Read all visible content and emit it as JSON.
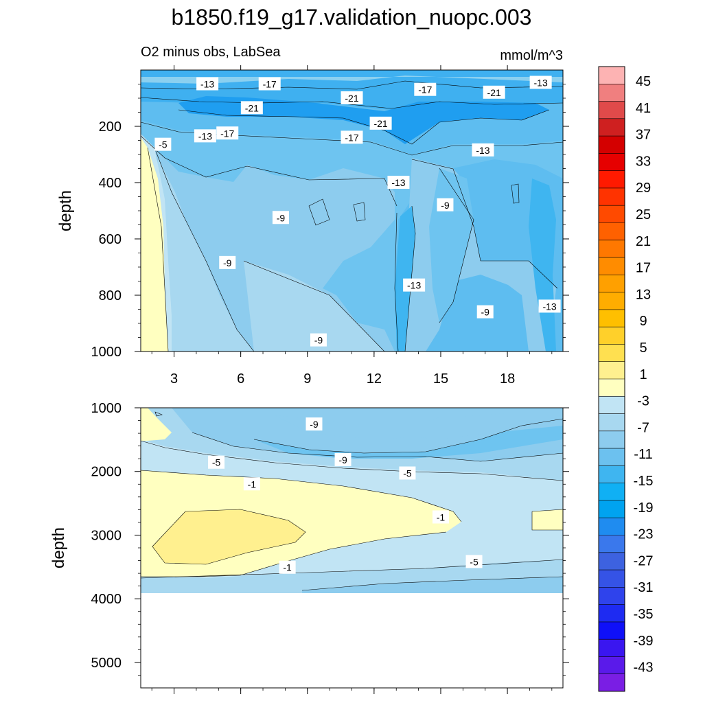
{
  "title": "b1850.f19_g17.validation_nuopc.003",
  "subtitle_left": "O2 minus obs, LabSea",
  "subtitle_right": "mmol/m^3",
  "colors": {
    "background": "#ffffff",
    "panel_empty": "#ffffff",
    "contour_line": "#000000"
  },
  "chart_data": [
    {
      "type": "heatmap",
      "panel": "upper",
      "ylabel": "depth",
      "xlabel": "",
      "ylim": [
        1000,
        0
      ],
      "xlim": [
        1.5,
        20.5
      ],
      "x_ticks": [
        3,
        6,
        9,
        12,
        15,
        18
      ],
      "x_tick_labels": [
        "3",
        "6",
        "9",
        "12",
        "15",
        "18"
      ],
      "y_ticks": [
        200,
        400,
        600,
        800,
        1000
      ],
      "y_tick_labels": [
        "200",
        "400",
        "600",
        "800",
        "1000"
      ],
      "contour_labels": [
        {
          "text": "-13",
          "x": 4.5,
          "y": 50
        },
        {
          "text": "-17",
          "x": 7.3,
          "y": 50
        },
        {
          "text": "-21",
          "x": 11.0,
          "y": 100
        },
        {
          "text": "-17",
          "x": 14.3,
          "y": 70
        },
        {
          "text": "-21",
          "x": 17.4,
          "y": 80
        },
        {
          "text": "-13",
          "x": 19.5,
          "y": 45
        },
        {
          "text": "-21",
          "x": 6.5,
          "y": 135
        },
        {
          "text": "-21",
          "x": 12.3,
          "y": 190
        },
        {
          "text": "-13",
          "x": 4.4,
          "y": 235
        },
        {
          "text": "-17",
          "x": 5.4,
          "y": 225
        },
        {
          "text": "-17",
          "x": 11.0,
          "y": 240
        },
        {
          "text": "-5",
          "x": 2.5,
          "y": 265
        },
        {
          "text": "-13",
          "x": 16.9,
          "y": 285
        },
        {
          "text": "-13",
          "x": 13.1,
          "y": 400
        },
        {
          "text": "-9",
          "x": 15.2,
          "y": 480
        },
        {
          "text": "-9",
          "x": 7.8,
          "y": 525
        },
        {
          "text": "-9",
          "x": 5.4,
          "y": 685
        },
        {
          "text": "-13",
          "x": 13.8,
          "y": 765
        },
        {
          "text": "-9",
          "x": 17.0,
          "y": 860
        },
        {
          "text": "-13",
          "x": 19.9,
          "y": 840
        },
        {
          "text": "-9",
          "x": 9.5,
          "y": 960
        }
      ]
    },
    {
      "type": "heatmap",
      "panel": "lower",
      "ylabel": "depth",
      "xlabel": "",
      "ylim": [
        5400,
        1000
      ],
      "xlim": [
        1.5,
        20.5
      ],
      "data_bottom_depth": 3900,
      "y_ticks": [
        1000,
        2000,
        3000,
        4000,
        5000
      ],
      "y_tick_labels": [
        "1000",
        "2000",
        "3000",
        "4000",
        "5000"
      ],
      "contour_labels": [
        {
          "text": "-9",
          "x": 9.3,
          "y": 1260
        },
        {
          "text": "-9",
          "x": 10.6,
          "y": 1820
        },
        {
          "text": "-5",
          "x": 4.9,
          "y": 1860
        },
        {
          "text": "-5",
          "x": 13.5,
          "y": 2030
        },
        {
          "text": "-1",
          "x": 6.5,
          "y": 2200
        },
        {
          "text": "-1",
          "x": 15.0,
          "y": 2720
        },
        {
          "text": "-1",
          "x": 8.1,
          "y": 3510
        },
        {
          "text": "-5",
          "x": 16.5,
          "y": 3420
        }
      ]
    }
  ],
  "colorbar": {
    "labels": [
      "45",
      "41",
      "37",
      "33",
      "29",
      "25",
      "21",
      "17",
      "13",
      "9",
      "5",
      "1",
      "-3",
      "-7",
      "-11",
      "-15",
      "-19",
      "-23",
      "-27",
      "-31",
      "-35",
      "-39",
      "-43"
    ],
    "colors": [
      "#fdb3b3",
      "#f07f7f",
      "#e04a4a",
      "#cf2020",
      "#d40000",
      "#e60000",
      "#ff1a00",
      "#ff3300",
      "#ff4a00",
      "#ff6100",
      "#ff7800",
      "#ff8c00",
      "#ffa000",
      "#ffad00",
      "#ffbf00",
      "#ffd02a",
      "#ffe050",
      "#fff08f",
      "#ffffc0",
      "#c1e4f4",
      "#a8d8f0",
      "#8dccee",
      "#6cc1ef",
      "#3fb5f0",
      "#10b0f4",
      "#00a3f0",
      "#1f8cf0",
      "#3a78ec",
      "#3d62e0",
      "#3553e6",
      "#2f43ec",
      "#1e2bf2",
      "#0f10f8",
      "#3a16f0",
      "#5a1aea",
      "#7a1ee4"
    ]
  }
}
